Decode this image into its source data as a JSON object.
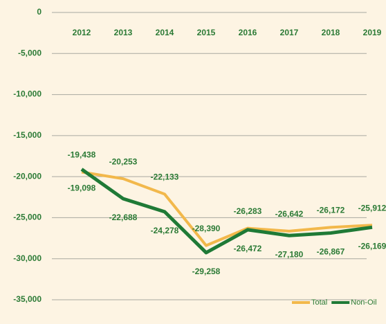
{
  "chart_data": {
    "type": "line",
    "categories": [
      "2012",
      "2013",
      "2014",
      "2015",
      "2016",
      "2017",
      "2018",
      "2019"
    ],
    "series": [
      {
        "name": "Total",
        "color": "#f2b84b",
        "values": [
          -19438,
          -20253,
          -22133,
          -28390,
          -26283,
          -26642,
          -26172,
          -25912
        ],
        "value_labels": [
          "-19,438",
          "-20,253",
          "-22,133",
          "-28,390",
          "-26,283",
          "-26,642",
          "-26,172",
          "-25,912"
        ]
      },
      {
        "name": "Non-Oil",
        "color": "#1f7a36",
        "values": [
          -19098,
          -22688,
          -24278,
          -29258,
          -26472,
          -27180,
          -26867,
          -26169
        ],
        "value_labels": [
          "-19,098",
          "-22,688",
          "-24,278",
          "-29,258",
          "-26,472",
          "-27,180",
          "-26,867",
          "-26,169"
        ]
      }
    ],
    "ylim": [
      -35000,
      0
    ],
    "yticks": [
      0,
      {
        "value": -5000,
        "label": "-5,000"
      },
      {
        "value": -10000,
        "label": "-10,000"
      },
      {
        "value": -15000,
        "label": "-15,000"
      },
      {
        "value": -20000,
        "label": "-20,000"
      },
      {
        "value": -25000,
        "label": "-25,000"
      },
      {
        "value": -30000,
        "label": "-30,000"
      },
      {
        "value": -35000,
        "label": "-35,000"
      }
    ],
    "grid": true,
    "legend": "bottom-right"
  }
}
